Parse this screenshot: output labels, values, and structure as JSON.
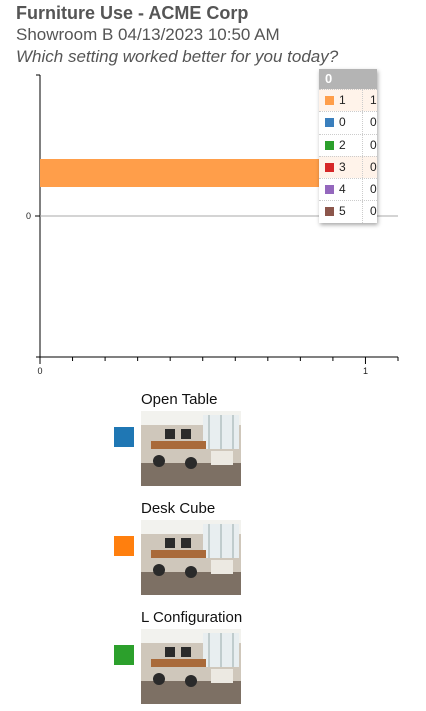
{
  "header": {
    "title": "Furniture Use - ACME Corp",
    "subtitle": "Showroom B 04/13/2023 10:50 AM",
    "question": "Which setting worked better for you today?"
  },
  "chart_data": {
    "type": "bar",
    "orientation": "horizontal",
    "categories": [
      "0"
    ],
    "series": [
      {
        "name": "1",
        "values": [
          1
        ],
        "color": "#ff9e4a"
      }
    ],
    "xlim": [
      0,
      1.1
    ],
    "x_ticks": [
      "0",
      "1"
    ],
    "y_ticks": [
      "0"
    ],
    "grid": false
  },
  "tooltip": {
    "header": "0",
    "rows": [
      {
        "key": "1",
        "value": "1",
        "color": "#ff9e4a",
        "highlight": true
      },
      {
        "key": "0",
        "value": "0",
        "color": "#3a7fbd",
        "highlight": false
      },
      {
        "key": "2",
        "value": "0",
        "color": "#2ca02c",
        "highlight": false
      },
      {
        "key": "3",
        "value": "0",
        "color": "#d62728",
        "highlight": true
      },
      {
        "key": "4",
        "value": "0",
        "color": "#9467bd",
        "highlight": false
      },
      {
        "key": "5",
        "value": "0",
        "color": "#8c564b",
        "highlight": false
      }
    ]
  },
  "legend": [
    {
      "label": "Open Table",
      "color": "#1f77b4",
      "photo": "open-table-photo"
    },
    {
      "label": "Desk Cube",
      "color": "#ff7f0e",
      "photo": "desk-cube-photo"
    },
    {
      "label": "L Configuration",
      "color": "#2ca02c",
      "photo": "l-configuration-photo"
    }
  ]
}
